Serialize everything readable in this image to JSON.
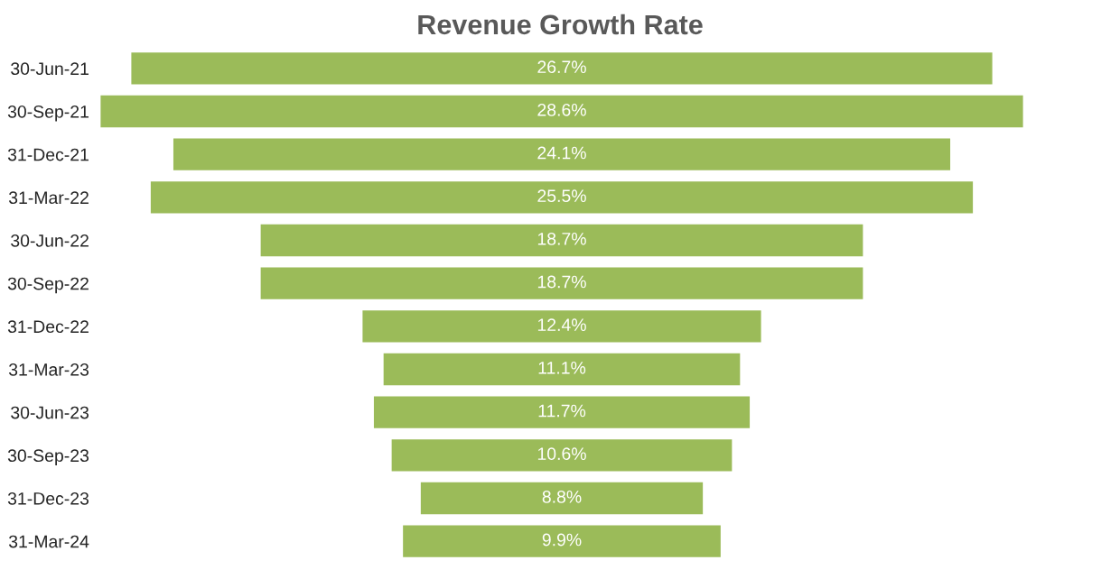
{
  "chart_data": {
    "type": "other",
    "title": "Revenue Growth Rate",
    "categories": [
      "30-Jun-21",
      "30-Sep-21",
      "31-Dec-21",
      "31-Mar-22",
      "30-Jun-22",
      "30-Sep-22",
      "31-Dec-22",
      "31-Mar-23",
      "30-Jun-23",
      "30-Sep-23",
      "31-Dec-23",
      "31-Mar-24"
    ],
    "values": [
      26.7,
      28.6,
      24.1,
      25.5,
      18.7,
      18.7,
      12.4,
      11.1,
      11.7,
      10.6,
      8.8,
      9.9
    ],
    "value_labels": [
      "26.7%",
      "28.6%",
      "24.1%",
      "25.5%",
      "18.7%",
      "18.7%",
      "12.4%",
      "11.1%",
      "11.7%",
      "10.6%",
      "8.8%",
      "9.9%"
    ],
    "color": "#9bbb59"
  }
}
